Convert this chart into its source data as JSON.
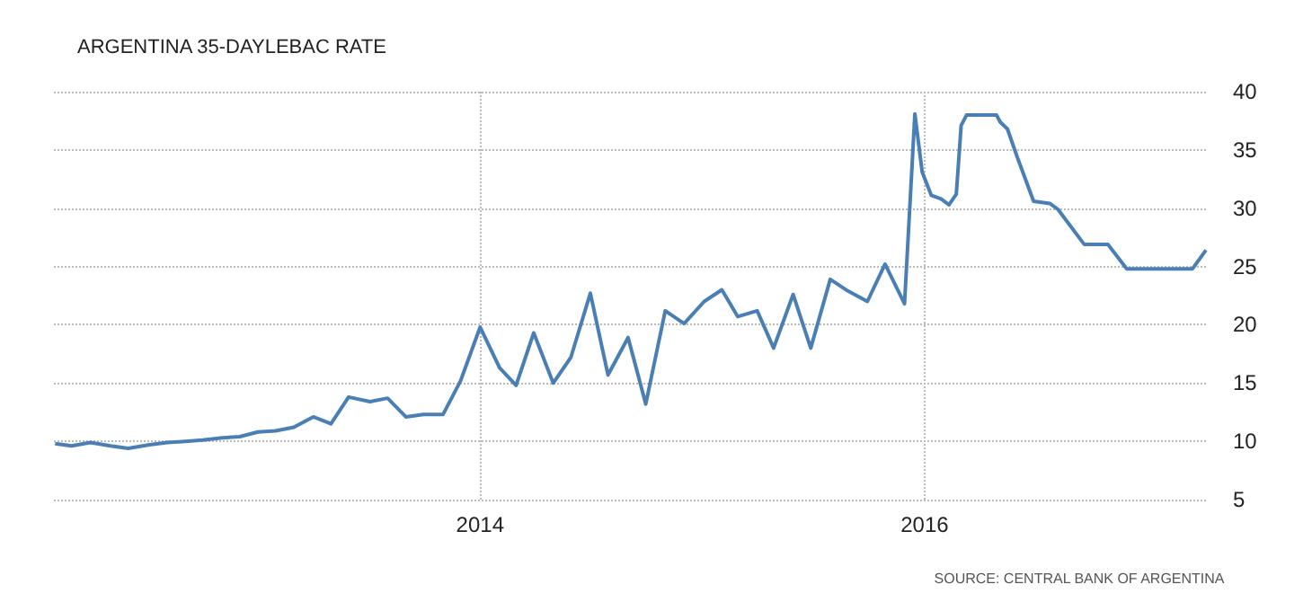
{
  "chart_data": {
    "type": "line",
    "title": "ARGENTINA 35-DAYLEBAC RATE",
    "annotations": [
      "SOURCE: CENTRAL BANK OF ARGENTINA"
    ],
    "x": [
      "2012-02-03",
      "2012-03-01",
      "2012-04-01",
      "2012-05-04",
      "2012-06-02",
      "2012-07-07",
      "2012-08-05",
      "2012-09-04",
      "2012-10-02",
      "2012-11-04",
      "2012-12-02",
      "2013-01-01",
      "2013-01-30",
      "2013-03-01",
      "2013-04-02",
      "2013-05-01",
      "2013-05-30",
      "2013-07-04",
      "2013-08-02",
      "2013-09-01",
      "2013-09-30",
      "2013-11-01",
      "2013-11-30",
      "2014-01-01",
      "2014-02-02",
      "2014-03-01",
      "2014-03-30",
      "2014-05-01",
      "2014-05-30",
      "2014-07-01",
      "2014-07-30",
      "2014-09-01",
      "2014-09-30",
      "2014-11-01",
      "2014-12-02",
      "2015-01-04",
      "2015-02-02",
      "2015-02-28",
      "2015-04-01",
      "2015-04-28",
      "2015-05-30",
      "2015-06-28",
      "2015-07-30",
      "2015-08-28",
      "2015-09-29",
      "2015-10-28",
      "2015-11-29",
      "2015-12-16",
      "2015-12-28",
      "2016-01-12",
      "2016-01-28",
      "2016-02-10",
      "2016-02-22",
      "2016-03-01",
      "2016-03-10",
      "2016-04-28",
      "2016-05-04",
      "2016-05-16",
      "2016-06-01",
      "2016-06-28",
      "2016-07-25",
      "2016-08-07",
      "2016-09-19",
      "2016-10-28",
      "2016-11-28",
      "2017-03-16",
      "2017-04-07"
    ],
    "series": [
      {
        "color": "#4a7fb5",
        "values": [
          9.8,
          9.6,
          9.9,
          9.6,
          9.4,
          9.7,
          9.9,
          10.0,
          10.1,
          10.3,
          10.4,
          10.8,
          10.9,
          11.2,
          12.1,
          11.5,
          13.8,
          13.4,
          13.7,
          12.1,
          12.3,
          12.3,
          15.2,
          19.8,
          16.3,
          14.8,
          19.3,
          15.0,
          17.2,
          22.7,
          15.7,
          18.9,
          13.2,
          21.2,
          20.1,
          22.0,
          23.0,
          20.7,
          21.2,
          18.0,
          22.6,
          18.0,
          23.9,
          22.9,
          22.0,
          25.2,
          21.8,
          38.1,
          33.1,
          31.1,
          30.8,
          30.3,
          31.2,
          37.1,
          38.0,
          38.0,
          37.4,
          36.8,
          34.4,
          30.6,
          30.4,
          29.9,
          26.9,
          26.9,
          24.8,
          24.8,
          26.4
        ]
      }
    ],
    "xlim": [
      "2012-02-01",
      "2017-04-10"
    ],
    "xticks": [
      {
        "value": "2014-01-01",
        "label": "2014"
      },
      {
        "value": "2016-01-01",
        "label": "2016"
      }
    ],
    "ylim": [
      5,
      40
    ],
    "yticks": [
      5,
      10,
      15,
      20,
      25,
      30,
      35,
      40
    ],
    "grid": true,
    "marker": "none",
    "line_style": "solid"
  }
}
